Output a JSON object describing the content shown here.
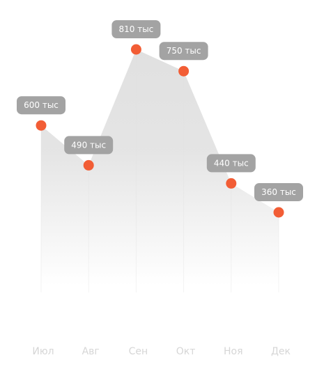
{
  "colors": {
    "area": "#e0e0e0",
    "dot": "#f25d35",
    "callout": "#a3a3a3",
    "callout_text": "#ffffff",
    "axis_text": "#d6d6d6",
    "gridline": "#f3f3f3"
  },
  "chart_data": {
    "type": "area",
    "categories": [
      "Июл",
      "Авг",
      "Сен",
      "Окт",
      "Ноя",
      "Дек"
    ],
    "series": [
      {
        "values": [
          600,
          490,
          810,
          750,
          440,
          360
        ],
        "labels": [
          "600 тыс",
          "490 тыс",
          "810 тыс",
          "750 тыс",
          "440 тыс",
          "360 тыс"
        ]
      }
    ],
    "xlabel": "",
    "ylabel": "",
    "grid": "vertical",
    "legend": "none"
  }
}
